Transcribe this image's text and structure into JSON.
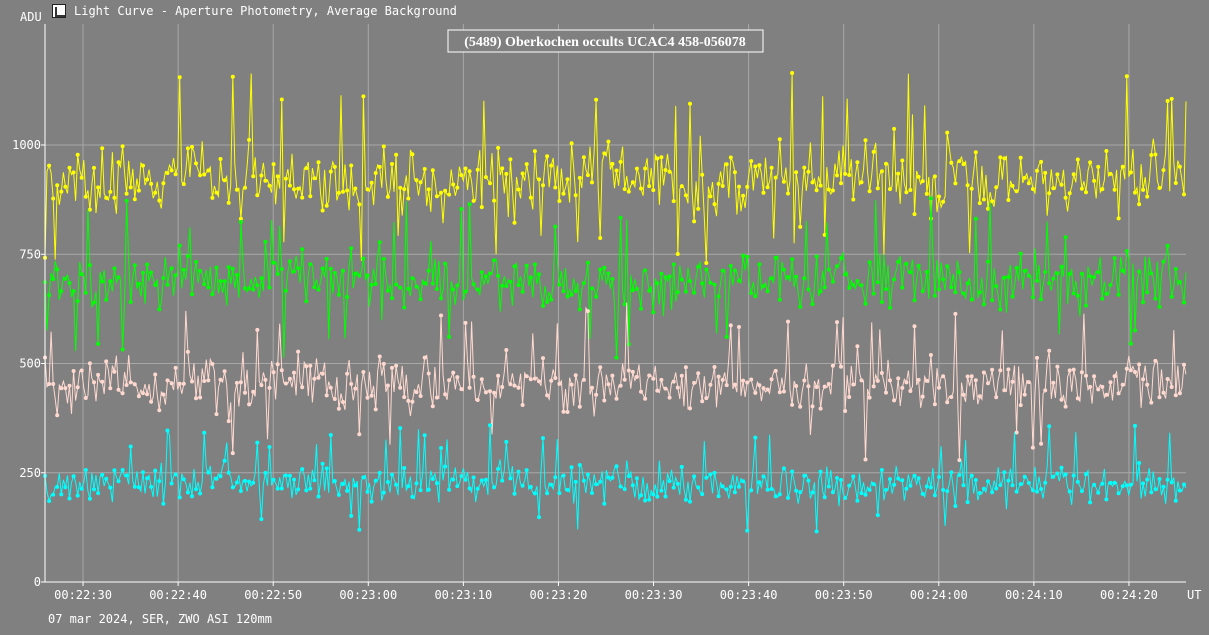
{
  "window": {
    "title": "Light Curve - Aperture Photometry, Average Background",
    "icon": "chart-icon"
  },
  "footer": {
    "text": "07 mar 2024, SER, ZWO ASI 120mm"
  },
  "chart_data": {
    "type": "line",
    "title": "(5489) Oberkochen occults UCAC4 458-056078",
    "ylabel": "ADU",
    "xlabel": "UT",
    "x_unit": "time (HH:MM:SS)",
    "xlim": [
      "00:22:26",
      "00:24:26"
    ],
    "ylim": [
      0,
      1000
    ],
    "y_ticks": [
      0,
      250,
      500,
      750,
      1000
    ],
    "x_ticks": [
      "00:22:30",
      "00:22:40",
      "00:22:50",
      "00:23:00",
      "00:23:10",
      "00:23:20",
      "00:23:30",
      "00:23:40",
      "00:23:50",
      "00:24:00",
      "00:24:10",
      "00:24:20"
    ],
    "grid": true,
    "background": "#808080",
    "series": [
      {
        "color": "#ffff00",
        "mean": 920,
        "noise": 75,
        "spike_high": 1170,
        "spike_low": 720
      },
      {
        "color": "#00ff00",
        "mean": 690,
        "noise": 60,
        "spike_high": 880,
        "spike_low": 500
      },
      {
        "color": "#ffd9d0",
        "mean": 455,
        "noise": 55,
        "spike_high": 640,
        "spike_low": 270
      },
      {
        "color": "#00ffff",
        "mean": 225,
        "noise": 38,
        "spike_high": 360,
        "spike_low": 115
      }
    ]
  }
}
